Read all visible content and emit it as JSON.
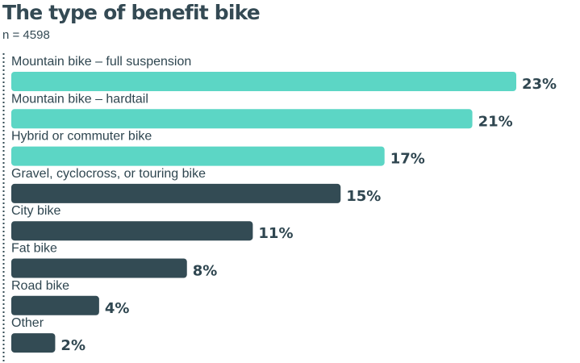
{
  "title": "The type of benefit bike",
  "subtitle": "n = 4598",
  "colors": {
    "highlight": "#5cd6c5",
    "default": "#334b54",
    "text": "#2f4650",
    "axis": "#334b54"
  },
  "chart_data": {
    "type": "bar",
    "orientation": "horizontal",
    "title": "The type of benefit bike",
    "subtitle": "n = 4598",
    "categories": [
      "Mountain bike – full suspension",
      "Mountain bike – hardtail",
      "Hybrid or commuter bike",
      "Gravel, cyclocross, or touring bike",
      "City bike",
      "Fat bike",
      "Road bike",
      "Other"
    ],
    "values": [
      23,
      21,
      17,
      15,
      11,
      8,
      4,
      2
    ],
    "value_labels": [
      "23%",
      "21%",
      "17%",
      "15%",
      "11%",
      "8%",
      "4%",
      "2%"
    ],
    "highlighted": [
      true,
      true,
      true,
      false,
      false,
      false,
      false,
      false
    ],
    "unit": "%",
    "xlim": [
      0,
      23
    ],
    "grid": false,
    "legend": "none"
  }
}
